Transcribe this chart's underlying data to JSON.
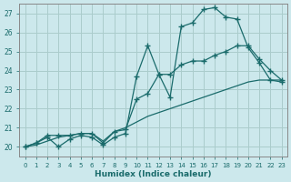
{
  "xlabel": "Humidex (Indice chaleur)",
  "bg_color": "#cce8ec",
  "grid_color": "#aacccc",
  "line_color": "#1a6b6b",
  "xlim": [
    -0.5,
    23.5
  ],
  "ylim": [
    19.5,
    27.5
  ],
  "xticks": [
    0,
    1,
    2,
    3,
    4,
    5,
    6,
    7,
    8,
    9,
    10,
    11,
    12,
    13,
    14,
    15,
    16,
    17,
    18,
    19,
    20,
    21,
    22,
    23
  ],
  "yticks": [
    20,
    21,
    22,
    23,
    24,
    25,
    26,
    27
  ],
  "line1_x": [
    0,
    1,
    2,
    3,
    4,
    5,
    6,
    7,
    8,
    9,
    10,
    11,
    12,
    13,
    14,
    15,
    16,
    17,
    18,
    19,
    20,
    21,
    22,
    23
  ],
  "line1_y": [
    20.0,
    20.2,
    20.5,
    20.0,
    20.4,
    20.6,
    20.5,
    20.1,
    20.5,
    20.7,
    23.7,
    25.3,
    23.8,
    22.6,
    26.3,
    26.5,
    27.2,
    27.3,
    26.8,
    26.7,
    25.2,
    24.4,
    23.5,
    23.4
  ],
  "line2_x": [
    0,
    1,
    2,
    3,
    4,
    5,
    6,
    7,
    8,
    9,
    10,
    11,
    12,
    13,
    14,
    15,
    16,
    17,
    18,
    19,
    20,
    21,
    22,
    23
  ],
  "line2_y": [
    20.0,
    20.2,
    20.6,
    20.6,
    20.6,
    20.7,
    20.7,
    20.2,
    20.8,
    20.9,
    22.5,
    22.8,
    23.8,
    23.8,
    24.3,
    24.5,
    24.5,
    24.8,
    25.0,
    25.3,
    25.3,
    24.6,
    24.0,
    23.5
  ],
  "line3_x": [
    0,
    1,
    2,
    3,
    4,
    5,
    6,
    7,
    8,
    9,
    10,
    11,
    12,
    13,
    14,
    15,
    16,
    17,
    18,
    19,
    20,
    21,
    22,
    23
  ],
  "line3_y": [
    20.0,
    20.1,
    20.3,
    20.5,
    20.6,
    20.7,
    20.7,
    20.3,
    20.8,
    21.0,
    21.3,
    21.6,
    21.8,
    22.0,
    22.2,
    22.4,
    22.6,
    22.8,
    23.0,
    23.2,
    23.4,
    23.5,
    23.5,
    23.5
  ]
}
